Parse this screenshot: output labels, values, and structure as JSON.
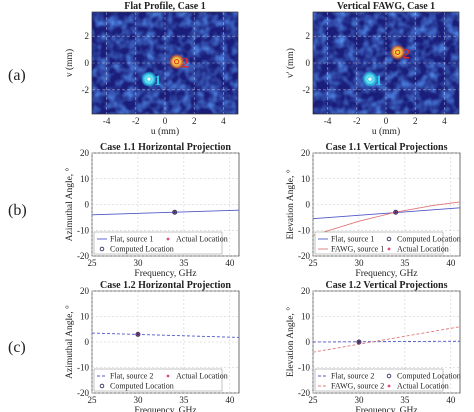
{
  "row_labels": [
    "(a)",
    "(b)",
    "(c)"
  ],
  "colors": {
    "heat_low": "#1a1e7a",
    "heat_mid": "#2c48c8",
    "source_1": "#28c8e6",
    "source_2": "#e02828",
    "marker_2": "#f0d028",
    "flat_line": "#5058c8",
    "fawg_line": "#e07878",
    "computed": "#303060",
    "actual": "#e04888"
  },
  "chart_data": [
    {
      "id": "a1",
      "type": "heatmap",
      "title": "Flat Profile, Case 1",
      "xlabel": "u (mm)",
      "ylabel": "v (mm)",
      "xlim": [
        -5,
        5
      ],
      "ylim": [
        -3.8,
        3.8
      ],
      "xticks": [
        -4,
        -2,
        0,
        2,
        4
      ],
      "yticks": [
        -2,
        0,
        2
      ],
      "sources": [
        {
          "label": "1",
          "u": -1.1,
          "v": -1.2
        },
        {
          "label": "2",
          "u": 0.8,
          "v": 0.1
        }
      ]
    },
    {
      "id": "a2",
      "type": "heatmap",
      "title": "Vertical FAWG, Case 1",
      "xlabel": "u (mm)",
      "ylabel": "v' (mm)",
      "xlim": [
        -5,
        5
      ],
      "ylim": [
        -3.8,
        3.8
      ],
      "xticks": [
        -4,
        -2,
        0,
        2,
        4
      ],
      "yticks": [
        -2,
        0,
        2
      ],
      "sources": [
        {
          "label": "1",
          "u": -1.1,
          "v": -1.2
        },
        {
          "label": "2",
          "u": 0.8,
          "v": 0.8
        }
      ]
    },
    {
      "id": "b1",
      "type": "line",
      "title": "Case 1.1 Horizontal Projection",
      "xlabel": "Frequency, GHz",
      "ylabel": "Azimuthal Angle, °",
      "xlim": [
        25,
        41
      ],
      "ylim": [
        -20,
        20
      ],
      "xticks": [
        25,
        30,
        35,
        40
      ],
      "yticks": [
        -20,
        -10,
        0,
        10,
        20
      ],
      "series": [
        {
          "name": "Flat, source 1",
          "x": [
            25,
            41
          ],
          "y": [
            -4.0,
            -2.2
          ]
        }
      ],
      "computed": [
        {
          "x": 34,
          "y": -3.0
        }
      ],
      "actual": [
        {
          "x": 34,
          "y": -3.0
        }
      ],
      "legend": {
        "placement": "bottom-left",
        "entries": [
          {
            "label": "Flat, source 1",
            "kind": "flat"
          },
          {
            "label": "Actual Location",
            "kind": "actual"
          },
          {
            "label": "Computed Location",
            "kind": "computed"
          }
        ]
      }
    },
    {
      "id": "b2",
      "type": "line",
      "title": "Case 1.1 Vertical Projections",
      "xlabel": "Frequency, GHz",
      "ylabel": "Elevation Angle, °",
      "xlim": [
        25,
        41
      ],
      "ylim": [
        -20,
        20
      ],
      "xticks": [
        25,
        30,
        35,
        40
      ],
      "yticks": [
        -20,
        -10,
        0,
        10,
        20
      ],
      "series": [
        {
          "name": "Flat, source 1",
          "x": [
            25,
            41
          ],
          "y": [
            -5.5,
            -1.3
          ]
        },
        {
          "name": "FAWG, source 1",
          "x": [
            25,
            30,
            34,
            38,
            41
          ],
          "y": [
            -12.0,
            -6.5,
            -3.0,
            -0.4,
            1.0
          ]
        }
      ],
      "computed": [
        {
          "x": 34,
          "y": -3.0
        }
      ],
      "actual": [
        {
          "x": 34,
          "y": -3.0
        }
      ],
      "legend": {
        "placement": "bottom-left",
        "entries": [
          {
            "label": "Flat, source 1",
            "kind": "flat"
          },
          {
            "label": "Computed Location",
            "kind": "computed"
          },
          {
            "label": "FAWG, source 1",
            "kind": "fawg"
          },
          {
            "label": "Actual Location",
            "kind": "actual"
          }
        ]
      }
    },
    {
      "id": "c1",
      "type": "line",
      "title": "Case 1.2 Horizontal Projection",
      "xlabel": "Frequency, GHz",
      "ylabel": "Azimuthal Angle, °",
      "xlim": [
        25,
        41
      ],
      "ylim": [
        -20,
        20
      ],
      "xticks": [
        25,
        30,
        35,
        40
      ],
      "yticks": [
        -20,
        -10,
        0,
        10,
        20
      ],
      "series": [
        {
          "name": "Flat, source 2",
          "x": [
            25,
            41
          ],
          "y": [
            3.5,
            1.8
          ]
        }
      ],
      "computed": [
        {
          "x": 30,
          "y": 3.0
        }
      ],
      "actual": [
        {
          "x": 30,
          "y": 3.0
        }
      ],
      "legend": {
        "placement": "bottom-left",
        "entries": [
          {
            "label": "Flat, source 2",
            "kind": "flat"
          },
          {
            "label": "Actual Location",
            "kind": "actual"
          },
          {
            "label": "Computed Location",
            "kind": "computed"
          }
        ]
      }
    },
    {
      "id": "c2",
      "type": "line",
      "title": "Case 1.2 Vertical Projections",
      "xlabel": "Frequency, GHz",
      "ylabel": "Elevation Angle, °",
      "xlim": [
        25,
        41
      ],
      "ylim": [
        -20,
        20
      ],
      "xticks": [
        25,
        30,
        35,
        40
      ],
      "yticks": [
        -20,
        -10,
        0,
        10,
        20
      ],
      "series": [
        {
          "name": "Flat, source 2",
          "x": [
            25,
            41
          ],
          "y": [
            0.0,
            0.3
          ]
        },
        {
          "name": "FAWG, source 2",
          "x": [
            25,
            41
          ],
          "y": [
            -4.0,
            6.0
          ]
        }
      ],
      "computed": [
        {
          "x": 30,
          "y": 0.0
        }
      ],
      "actual": [
        {
          "x": 30,
          "y": 0.0
        }
      ],
      "legend": {
        "placement": "bottom-left",
        "entries": [
          {
            "label": "Flat, source 2",
            "kind": "flat"
          },
          {
            "label": "Computed Location",
            "kind": "computed"
          },
          {
            "label": "FAWG, source 2",
            "kind": "fawg"
          },
          {
            "label": "Actual Location",
            "kind": "actual"
          }
        ]
      }
    }
  ]
}
